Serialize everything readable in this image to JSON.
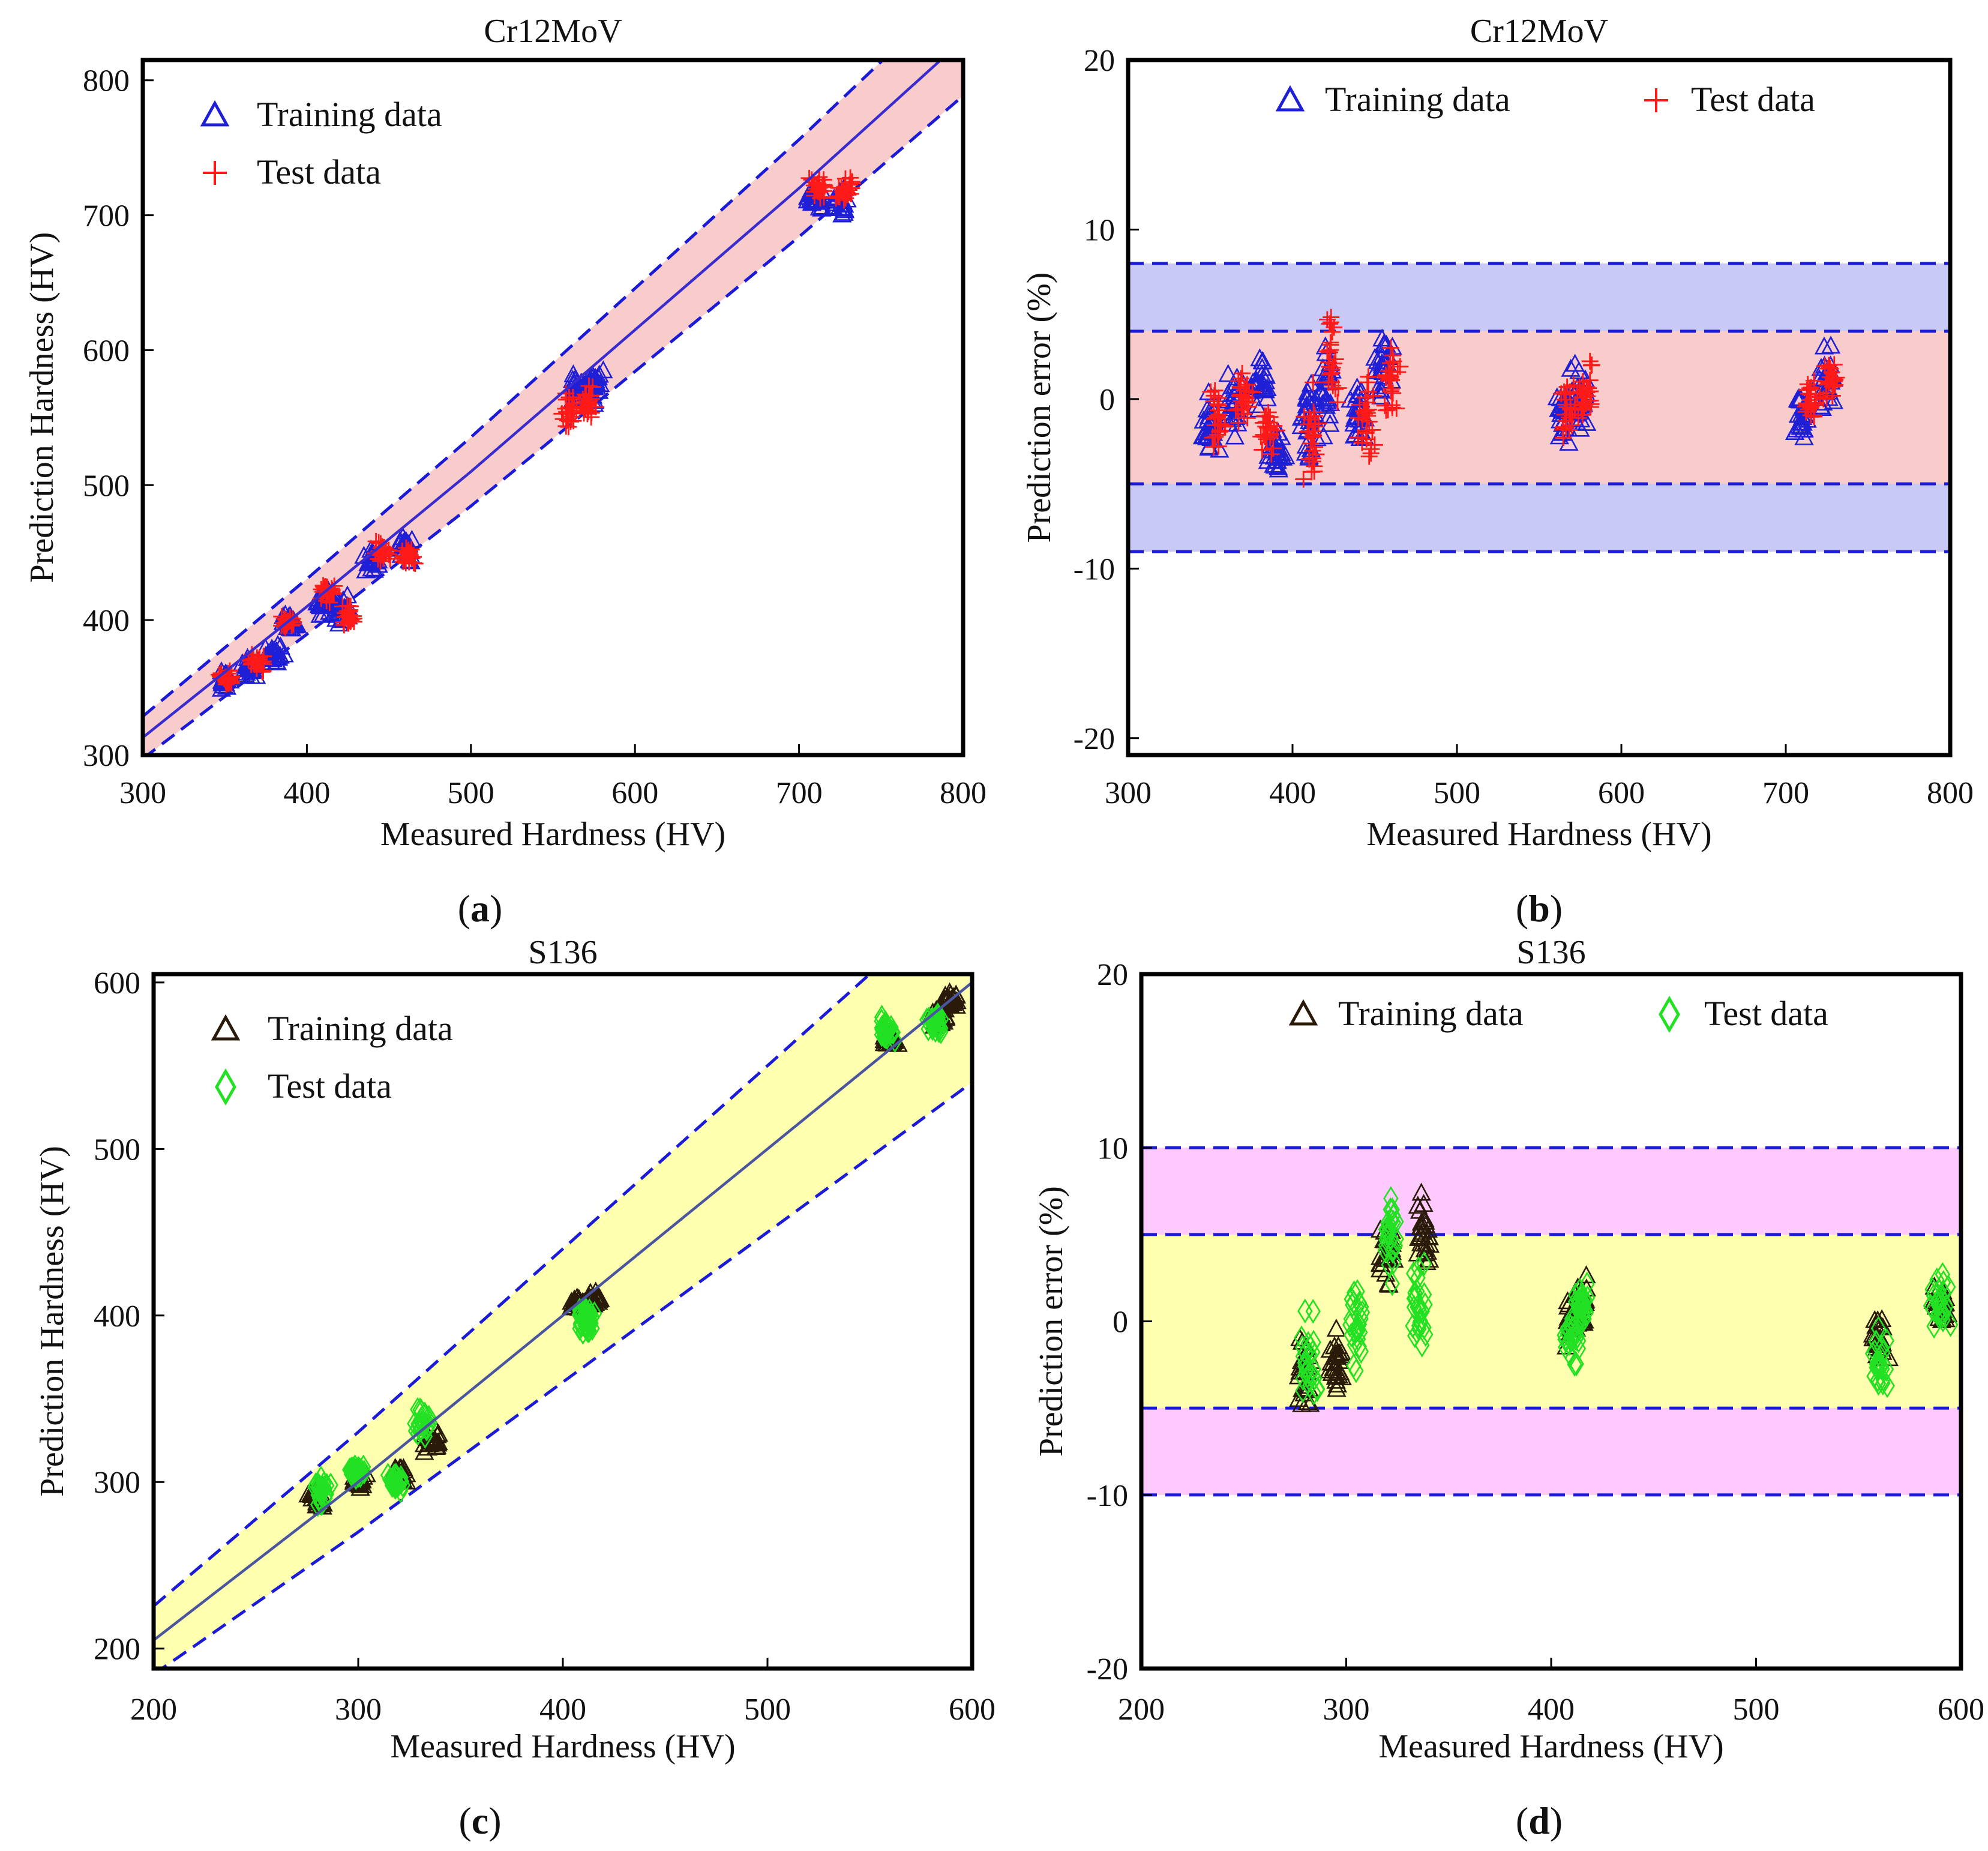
{
  "panels": [
    {
      "id": "a",
      "panel_label": "a",
      "chart_data": {
        "type": "scatter",
        "title": "Cr12MoV",
        "xlabel": "Measured Hardness (HV)",
        "ylabel": "Prediction Hardness (HV)",
        "xlim": [
          300,
          800
        ],
        "ylim": [
          300,
          815
        ],
        "xticks": [
          300,
          400,
          500,
          600,
          700,
          800
        ],
        "yticks": [
          300,
          400,
          500,
          600,
          700,
          800
        ],
        "legend_position": "top-left",
        "series": [
          {
            "name": "Training data",
            "marker": "triangle",
            "color": "#1f1fd6",
            "clusters": [
              [
                350,
                355,
                10
              ],
              [
                365,
                365,
                10
              ],
              [
                380,
                375,
                10
              ],
              [
                390,
                398,
                8
              ],
              [
                410,
                415,
                14
              ],
              [
                420,
                410,
                14
              ],
              [
                440,
                445,
                14
              ],
              [
                460,
                455,
                14
              ],
              [
                565,
                570,
                22
              ],
              [
                575,
                575,
                22
              ],
              [
                710,
                712,
                14
              ],
              [
                725,
                710,
                14
              ]
            ]
          },
          {
            "name": "Test data",
            "marker": "plus",
            "color": "#ff1a1a",
            "clusters": [
              [
                352,
                357,
                8
              ],
              [
                370,
                368,
                8
              ],
              [
                388,
                398,
                8
              ],
              [
                412,
                420,
                12
              ],
              [
                425,
                402,
                12
              ],
              [
                445,
                450,
                12
              ],
              [
                462,
                448,
                12
              ],
              [
                560,
                555,
                20
              ],
              [
                572,
                560,
                20
              ],
              [
                712,
                720,
                14
              ],
              [
                728,
                718,
                14
              ]
            ]
          }
        ],
        "fit_line": {
          "label": "ideal y = x",
          "color": "#3a2bd0",
          "points": [
            [
              300,
              313
            ],
            [
              400,
              410
            ],
            [
              500,
              510
            ],
            [
              600,
              615
            ],
            [
              700,
              720
            ],
            [
              800,
              830
            ]
          ]
        },
        "band": {
          "offset_pct": 5,
          "color": "#f9cccc"
        }
      }
    },
    {
      "id": "b",
      "panel_label": "b",
      "chart_data": {
        "type": "scatter",
        "title": "Cr12MoV",
        "xlabel": "Measured Hardness (HV)",
        "ylabel": "Prediction error (%)",
        "xlim": [
          300,
          800
        ],
        "ylim": [
          -21,
          20
        ],
        "xticks": [
          300,
          400,
          500,
          600,
          700,
          800
        ],
        "yticks": [
          -20,
          -10,
          0,
          10,
          20
        ],
        "legend_position": "top",
        "series": [
          {
            "name": "Training data",
            "marker": "triangle",
            "color": "#1f1fd6",
            "clusters": [
              [
                350,
                -2,
                3
              ],
              [
                365,
                0,
                3
              ],
              [
                380,
                1,
                2
              ],
              [
                390,
                -3,
                2
              ],
              [
                410,
                -1,
                4
              ],
              [
                420,
                1,
                4
              ],
              [
                440,
                -1,
                3
              ],
              [
                455,
                2,
                3
              ],
              [
                565,
                -1,
                3
              ],
              [
                575,
                0,
                3
              ],
              [
                710,
                -1,
                2
              ],
              [
                725,
                1,
                3
              ]
            ]
          },
          {
            "name": "Test data",
            "marker": "plus",
            "color": "#ff1a1a",
            "clusters": [
              [
                355,
                -1,
                3
              ],
              [
                370,
                0,
                2
              ],
              [
                385,
                -2,
                2
              ],
              [
                412,
                -2,
                4
              ],
              [
                424,
                2,
                4
              ],
              [
                445,
                -1,
                4
              ],
              [
                460,
                1,
                3
              ],
              [
                568,
                0,
                3
              ],
              [
                578,
                1,
                3
              ],
              [
                715,
                0,
                2
              ],
              [
                728,
                1,
                2
              ]
            ]
          }
        ],
        "inner_band": {
          "range": [
            -5,
            4
          ],
          "color": "#f9cccc"
        },
        "outer_band": {
          "range": [
            -9,
            8
          ],
          "color": "#c9c9f5"
        },
        "dashed_lines": [
          8,
          4,
          -5,
          -9
        ]
      }
    },
    {
      "id": "c",
      "panel_label": "c",
      "chart_data": {
        "type": "scatter",
        "title": "S136",
        "xlabel": "Measured Hardness (HV)",
        "ylabel": "Prediction Hardness (HV)",
        "xlim": [
          200,
          600
        ],
        "ylim": [
          188,
          605
        ],
        "xticks": [
          200,
          300,
          400,
          500,
          600
        ],
        "yticks": [
          200,
          300,
          400,
          500,
          600
        ],
        "legend_position": "top-left",
        "series": [
          {
            "name": "Training data",
            "marker": "triangle",
            "color": "#2a1a0a",
            "clusters": [
              [
                280,
                290,
                10
              ],
              [
                300,
                300,
                8
              ],
              [
                320,
                305,
                8
              ],
              [
                335,
                325,
                10
              ],
              [
                408,
                408,
                6
              ],
              [
                415,
                410,
                6
              ],
              [
                560,
                565,
                8
              ],
              [
                585,
                580,
                8
              ],
              [
                590,
                590,
                6
              ]
            ]
          },
          {
            "name": "Test data",
            "marker": "diamond",
            "color": "#22e022",
            "clusters": [
              [
                282,
                295,
                12
              ],
              [
                300,
                305,
                8
              ],
              [
                318,
                300,
                8
              ],
              [
                332,
                335,
                14
              ],
              [
                410,
                400,
                8
              ],
              [
                412,
                395,
                8
              ],
              [
                558,
                572,
                12
              ],
              [
                582,
                575,
                12
              ]
            ]
          }
        ],
        "fit_line": {
          "label": "ideal y = x",
          "color": "#4a55a0",
          "points": [
            [
              200,
              205
            ],
            [
              300,
              300
            ],
            [
              400,
              400
            ],
            [
              500,
              500
            ],
            [
              600,
              600
            ]
          ]
        },
        "band": {
          "offset_pct": 10,
          "color": "#ffffb0"
        }
      }
    },
    {
      "id": "d",
      "panel_label": "d",
      "chart_data": {
        "type": "scatter",
        "title": "S136",
        "xlabel": "Measured Hardness (HV)",
        "ylabel": "Prediction error (%)",
        "xlim": [
          200,
          600
        ],
        "ylim": [
          -20,
          20
        ],
        "xticks": [
          200,
          300,
          400,
          500,
          600
        ],
        "yticks": [
          -20,
          -10,
          0,
          10,
          20
        ],
        "legend_position": "top",
        "series": [
          {
            "name": "Training data",
            "marker": "triangle",
            "color": "#2a1a0a",
            "clusters": [
              [
                280,
                -3,
                4
              ],
              [
                295,
                -2,
                3
              ],
              [
                320,
                4,
                3
              ],
              [
                338,
                5,
                3
              ],
              [
                410,
                0,
                2
              ],
              [
                415,
                1,
                2
              ],
              [
                560,
                -1,
                2
              ],
              [
                590,
                1,
                2
              ]
            ]
          },
          {
            "name": "Test data",
            "marker": "diamond",
            "color": "#22e022",
            "clusters": [
              [
                282,
                -2,
                5
              ],
              [
                305,
                0,
                4
              ],
              [
                322,
                5,
                4
              ],
              [
                335,
                1,
                5
              ],
              [
                410,
                -1,
                2
              ],
              [
                415,
                1,
                2
              ],
              [
                560,
                -2,
                3
              ],
              [
                590,
                1,
                2
              ]
            ]
          }
        ],
        "inner_band": {
          "range": [
            -5,
            5
          ],
          "color": "#ffffb0"
        },
        "outer_band": {
          "range": [
            -10,
            10
          ],
          "color": "#ffcaff"
        },
        "dashed_lines": [
          10,
          5,
          -5,
          -10
        ]
      }
    }
  ]
}
